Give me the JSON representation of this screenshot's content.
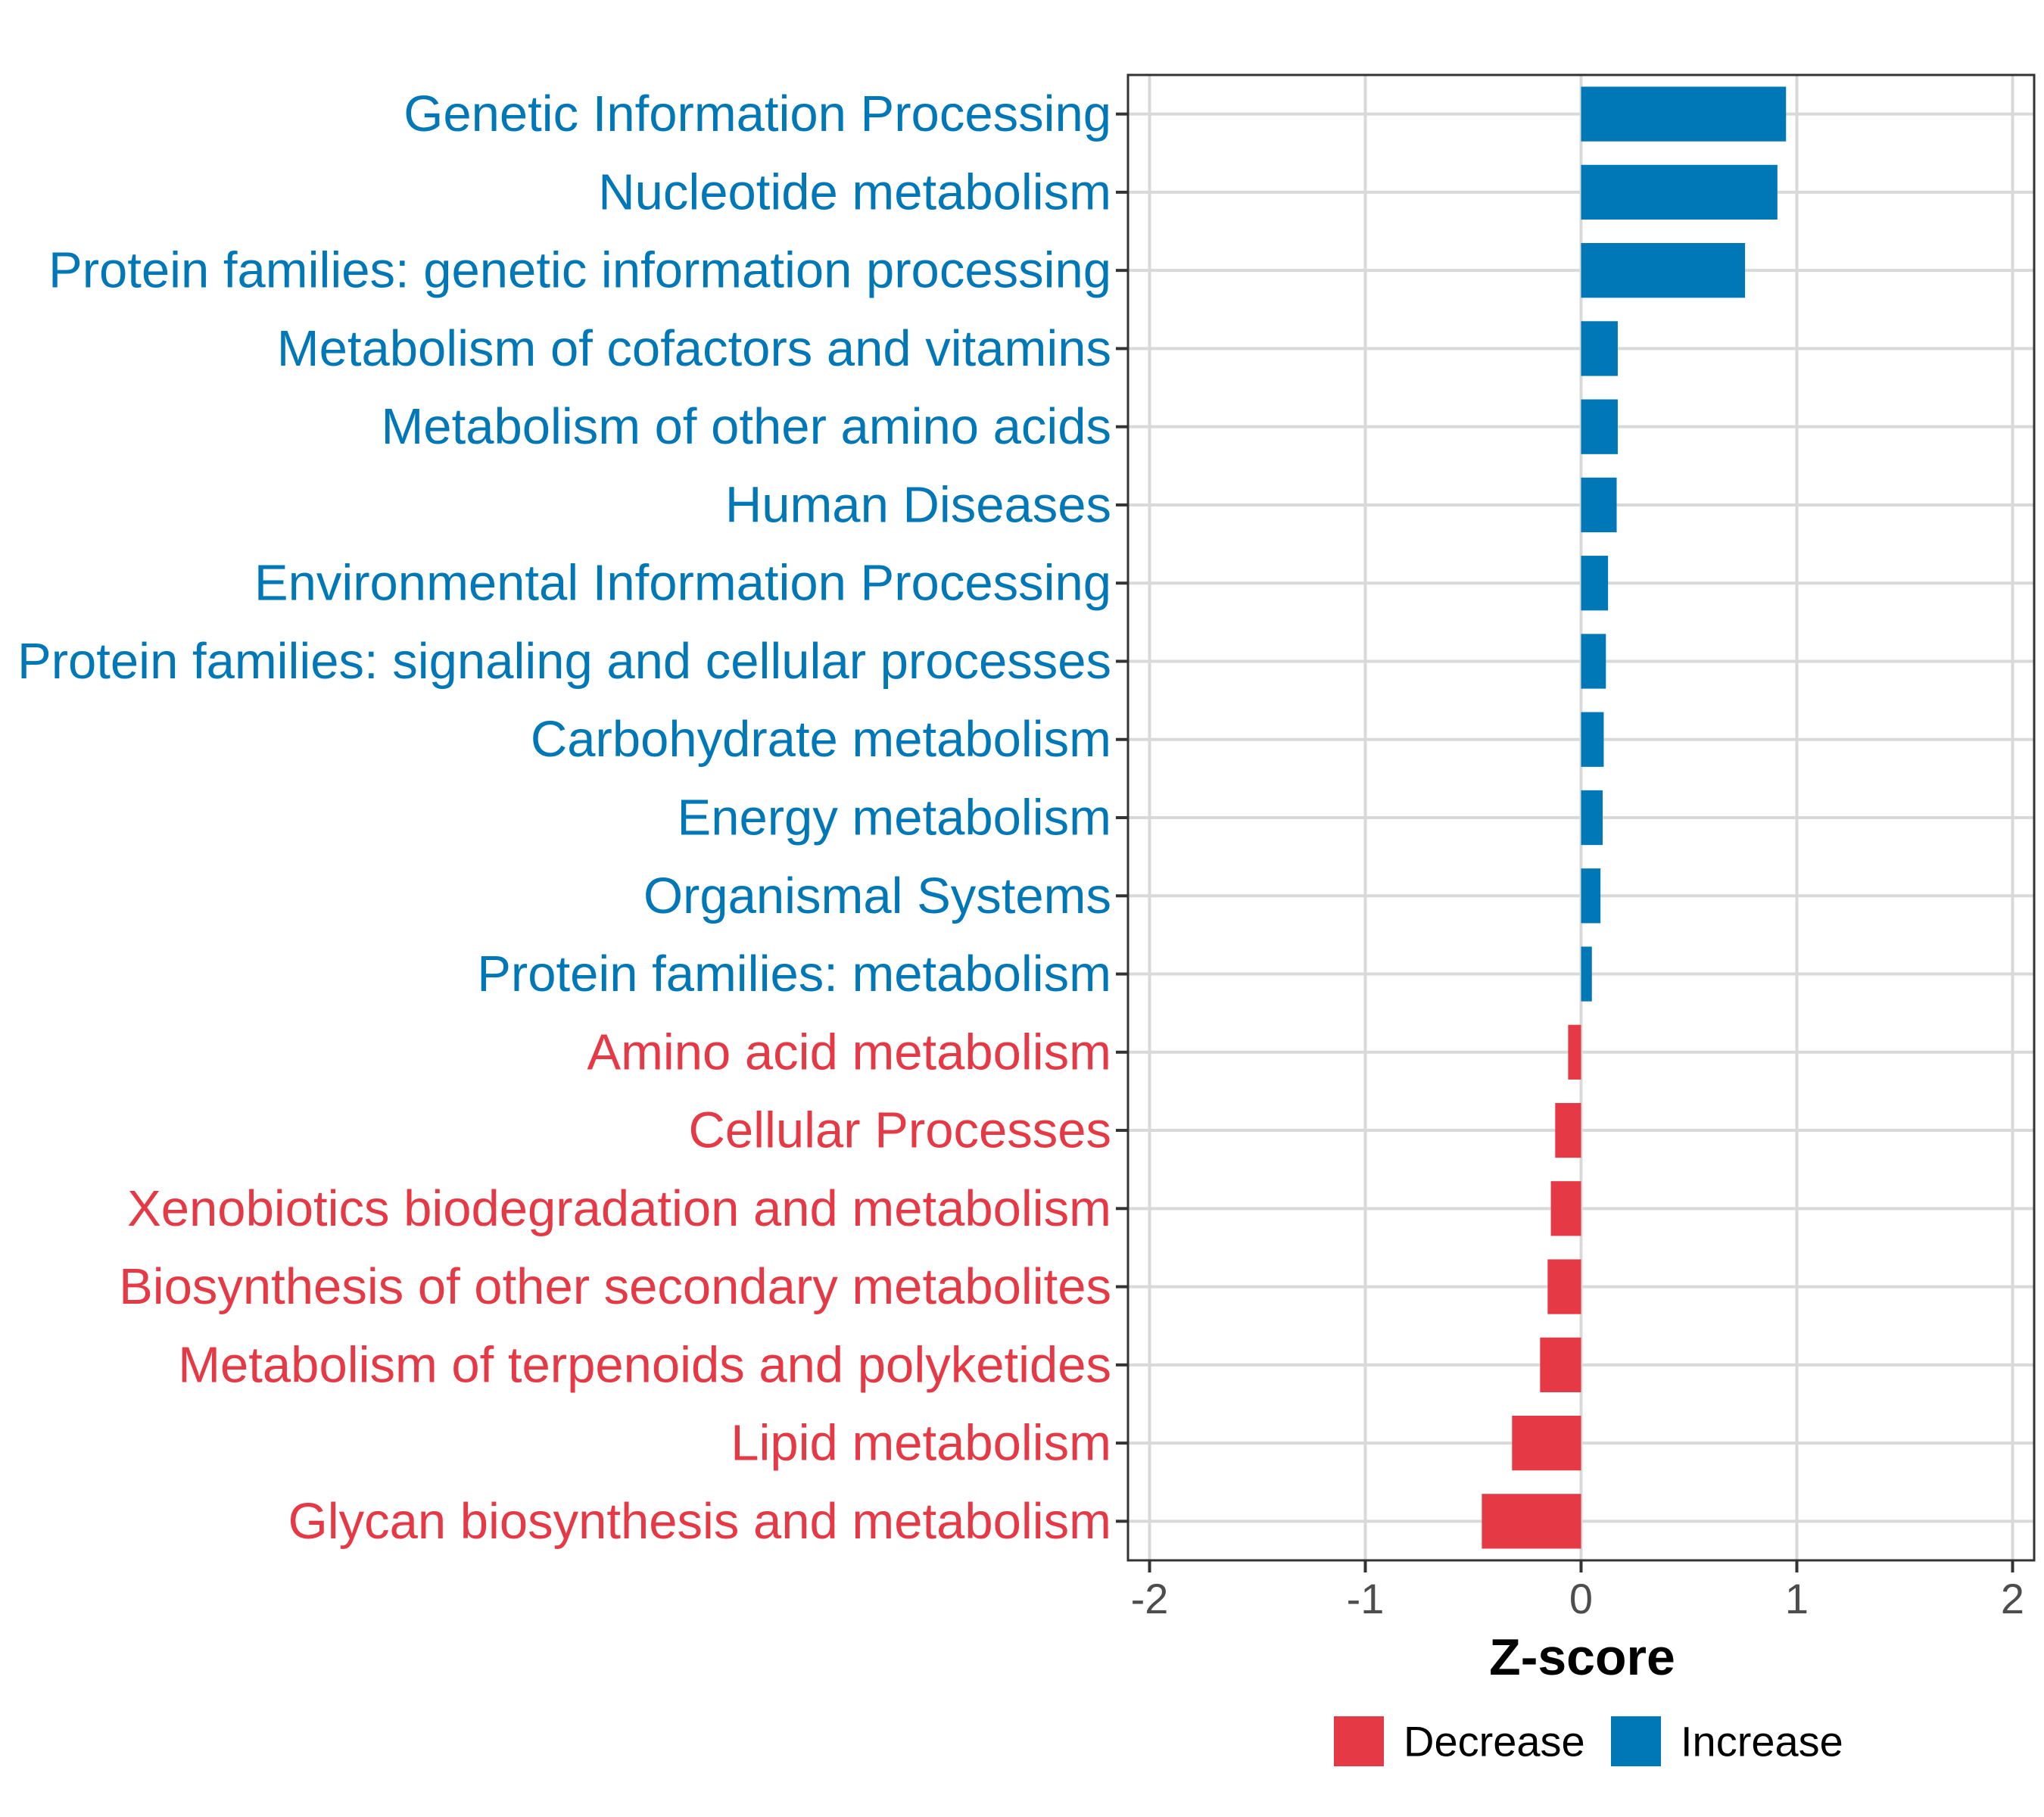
{
  "chart_data": {
    "type": "bar",
    "orientation": "horizontal",
    "categories": [
      "Genetic Information Processing",
      "Nucleotide metabolism",
      "Protein families: genetic information processing",
      "Metabolism of cofactors and vitamins",
      "Metabolism of other amino acids",
      "Human Diseases",
      "Environmental Information Processing",
      "Protein families: signaling and cellular processes",
      "Carbohydrate metabolism",
      "Energy metabolism",
      "Organismal Systems",
      "Protein families: metabolism",
      "Amino acid metabolism",
      "Cellular Processes",
      "Xenobiotics biodegradation and metabolism",
      "Biosynthesis of other secondary metabolites",
      "Metabolism of terpenoids and polyketides",
      "Lipid metabolism",
      "Glycan biosynthesis and metabolism"
    ],
    "values": [
      0.95,
      0.91,
      0.76,
      0.17,
      0.17,
      0.165,
      0.125,
      0.115,
      0.105,
      0.1,
      0.09,
      0.05,
      -0.06,
      -0.12,
      -0.14,
      -0.155,
      -0.19,
      -0.32,
      -0.46
    ],
    "groups": [
      "Increase",
      "Increase",
      "Increase",
      "Increase",
      "Increase",
      "Increase",
      "Increase",
      "Increase",
      "Increase",
      "Increase",
      "Increase",
      "Increase",
      "Decrease",
      "Decrease",
      "Decrease",
      "Decrease",
      "Decrease",
      "Decrease",
      "Decrease"
    ],
    "xlim": [
      -2.1,
      2.1
    ],
    "xticks": [
      -2,
      -1,
      0,
      1,
      2
    ],
    "xtick_labels": [
      "-2",
      "-1",
      "0",
      "1",
      "2"
    ],
    "xlabel": "Z-score",
    "ylabel": "",
    "title": "",
    "grid": true,
    "colors": {
      "Decrease": "#e63946",
      "Increase": "#0077b6"
    },
    "legend": {
      "position": "bottom",
      "entries": [
        {
          "name": "Decrease",
          "label": "Decrease"
        },
        {
          "name": "Increase",
          "label": "Increase"
        }
      ]
    }
  }
}
